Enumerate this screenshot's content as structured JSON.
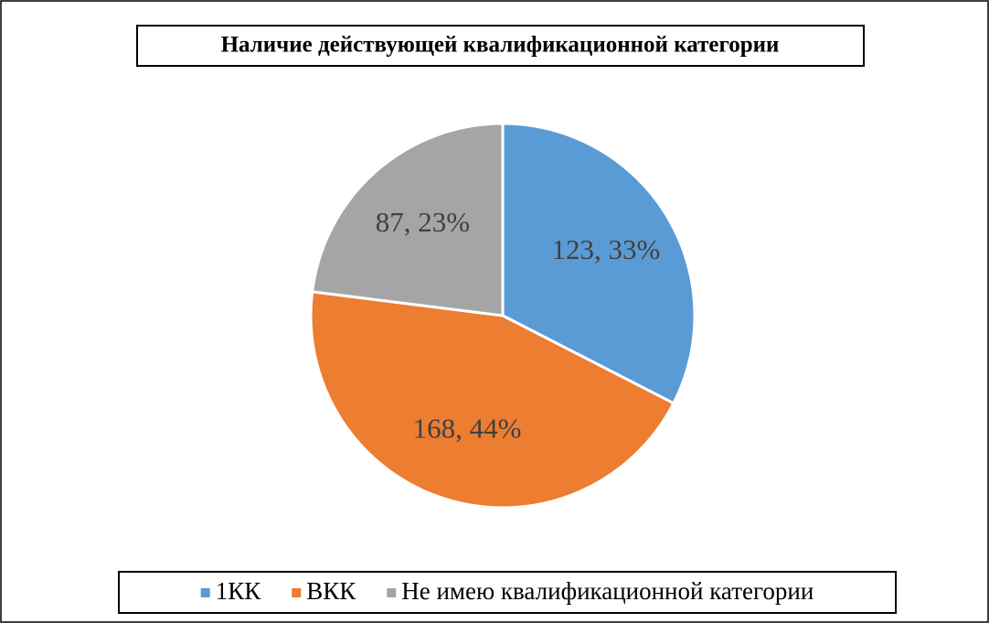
{
  "chart_data": {
    "type": "pie",
    "title": "Наличие действующей квалификационной категории",
    "categories": [
      "1КК",
      "ВКК",
      "Не имею квалификационной категории"
    ],
    "values": [
      123,
      168,
      87
    ],
    "value_labels": [
      "123, 33%",
      "168, 44%",
      "87, 23%"
    ],
    "colors": [
      "#5b9bd5",
      "#ed7d31",
      "#a5a5a5"
    ],
    "legend": "bottom"
  }
}
